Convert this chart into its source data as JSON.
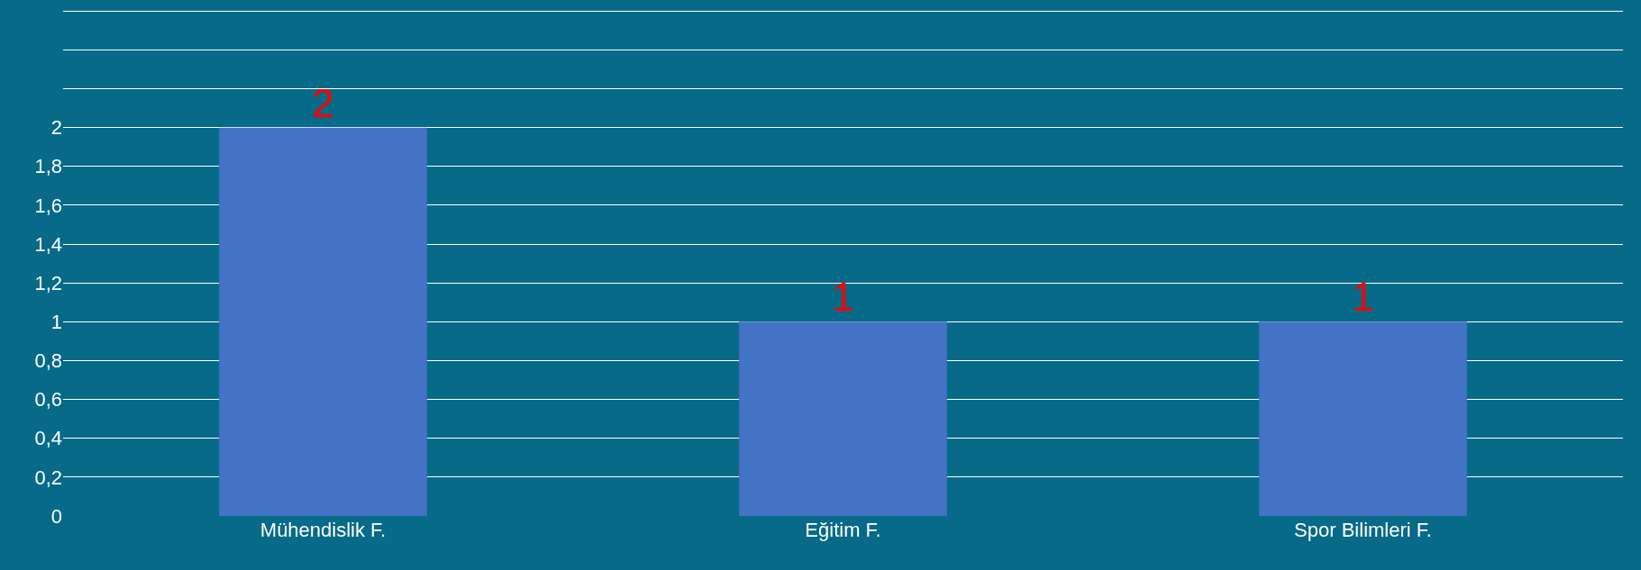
{
  "chart_data": {
    "type": "bar",
    "categories": [
      "Mühendislik F.",
      "Eğitim F.",
      "Spor Bilimleri F."
    ],
    "values": [
      2,
      1,
      1
    ],
    "color": "#4472c4",
    "ylim": [
      0,
      2.6
    ],
    "yticks": [
      0,
      {
        "value": 0.2,
        "label": "0,2"
      },
      {
        "value": 0.4,
        "label": "0,4"
      },
      {
        "value": 0.6,
        "label": "0,6"
      },
      {
        "value": 0.8,
        "label": "0,8"
      },
      1,
      {
        "value": 1.2,
        "label": "1,2"
      },
      {
        "value": 1.4,
        "label": "1,4"
      },
      {
        "value": 1.6,
        "label": "1,6"
      },
      {
        "value": 1.8,
        "label": "1,8"
      },
      2,
      {
        "value": 2.2,
        "label": null
      },
      {
        "value": 2.4,
        "label": null
      },
      {
        "value": 2.6,
        "label": null
      }
    ],
    "grid": "y",
    "data_labels": true
  }
}
